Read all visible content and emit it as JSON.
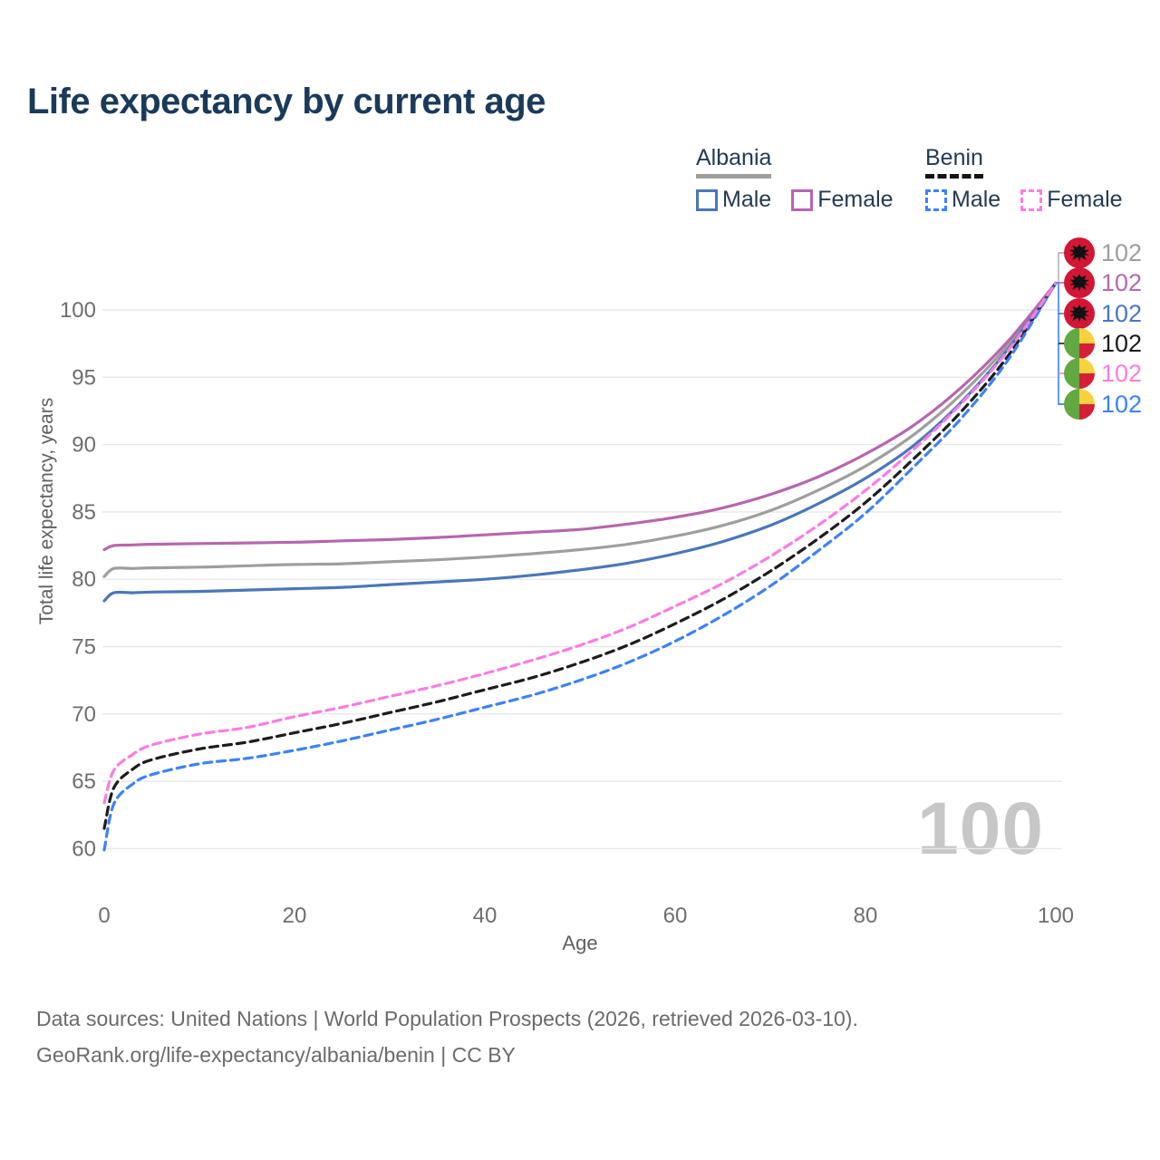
{
  "title": "Life expectancy by current age",
  "legend": {
    "albania": {
      "label": "Albania",
      "male_label": "Male",
      "female_label": "Female"
    },
    "benin": {
      "label": "Benin",
      "male_label": "Male",
      "female_label": "Female"
    }
  },
  "watermark_age": "100",
  "end_labels": [
    {
      "flag": "albania",
      "value": "102",
      "color": "#9e9e9e"
    },
    {
      "flag": "albania",
      "value": "102",
      "color": "#b06ab2"
    },
    {
      "flag": "albania",
      "value": "102",
      "color": "#4a77c4"
    },
    {
      "flag": "benin",
      "value": "102",
      "color": "#1a1a1a"
    },
    {
      "flag": "benin",
      "value": "102",
      "color": "#fb7ce3"
    },
    {
      "flag": "benin",
      "value": "102",
      "color": "#3d82f5"
    }
  ],
  "footer": {
    "line1": "Data sources: United Nations | World Population Prospects (2026, retrieved 2026-03-10).",
    "line2": "GeoRank.org/life-expectancy/albania/benin | CC BY"
  },
  "chart_data": {
    "type": "line",
    "title": "Life expectancy by current age",
    "xlabel": "Age",
    "ylabel": "Total life expectancy, years",
    "xlim": [
      0,
      100
    ],
    "ylim": [
      59,
      103
    ],
    "x_ticks": [
      0,
      20,
      40,
      60,
      80,
      100
    ],
    "y_ticks": [
      60,
      65,
      70,
      75,
      80,
      85,
      90,
      95,
      100
    ],
    "grid": "horizontal-only",
    "legend_position": "top-right",
    "x": [
      0,
      1,
      3,
      5,
      10,
      15,
      20,
      25,
      30,
      35,
      40,
      45,
      50,
      55,
      60,
      65,
      70,
      75,
      80,
      85,
      90,
      95,
      100
    ],
    "series": [
      {
        "name": "Albania Total",
        "country": "Albania",
        "sex": "total",
        "color": "#9e9e9e",
        "dash": "solid",
        "values": [
          80.2,
          80.8,
          80.8,
          80.85,
          80.9,
          81.0,
          81.1,
          81.15,
          81.3,
          81.45,
          81.65,
          81.9,
          82.2,
          82.6,
          83.2,
          84.0,
          85.1,
          86.6,
          88.4,
          90.7,
          93.7,
          97.4,
          102
        ]
      },
      {
        "name": "Albania Male",
        "country": "Albania",
        "sex": "male",
        "color": "#4a77b8",
        "dash": "solid",
        "values": [
          78.4,
          79.0,
          79.0,
          79.05,
          79.1,
          79.2,
          79.3,
          79.4,
          79.6,
          79.8,
          80.0,
          80.3,
          80.7,
          81.2,
          81.9,
          82.8,
          84.0,
          85.6,
          87.5,
          89.9,
          93.1,
          97.1,
          102
        ]
      },
      {
        "name": "Albania Female",
        "country": "Albania",
        "sex": "female",
        "color": "#b666ae",
        "dash": "solid",
        "values": [
          82.2,
          82.5,
          82.55,
          82.6,
          82.65,
          82.7,
          82.75,
          82.85,
          82.95,
          83.1,
          83.3,
          83.5,
          83.7,
          84.1,
          84.6,
          85.3,
          86.3,
          87.6,
          89.3,
          91.4,
          94.2,
          97.7,
          102
        ]
      },
      {
        "name": "Benin Total",
        "country": "Benin",
        "sex": "total",
        "color": "#1c1c1c",
        "dash": "dashed",
        "values": [
          61.5,
          64.5,
          65.9,
          66.6,
          67.4,
          67.9,
          68.6,
          69.3,
          70.1,
          70.9,
          71.8,
          72.7,
          73.8,
          75.1,
          76.7,
          78.5,
          80.6,
          83.0,
          85.7,
          88.9,
          92.4,
          96.6,
          102
        ]
      },
      {
        "name": "Benin Male",
        "country": "Benin",
        "sex": "male",
        "color": "#3d82f5",
        "dash": "dashed",
        "values": [
          59.9,
          63.3,
          64.8,
          65.5,
          66.3,
          66.7,
          67.3,
          68.0,
          68.8,
          69.6,
          70.5,
          71.4,
          72.5,
          73.8,
          75.4,
          77.3,
          79.5,
          82.1,
          84.9,
          88.3,
          91.9,
          96.3,
          102
        ]
      },
      {
        "name": "Benin Female",
        "country": "Benin",
        "sex": "female",
        "color": "#fb7ce3",
        "dash": "dashed",
        "values": [
          63.4,
          65.8,
          67.0,
          67.7,
          68.5,
          69.0,
          69.8,
          70.5,
          71.3,
          72.1,
          73.0,
          74.0,
          75.1,
          76.4,
          78.0,
          79.7,
          81.7,
          84.0,
          86.6,
          89.6,
          93.0,
          97.0,
          102
        ]
      }
    ],
    "end_value_labels": [
      102,
      102,
      102,
      102,
      102,
      102
    ]
  }
}
